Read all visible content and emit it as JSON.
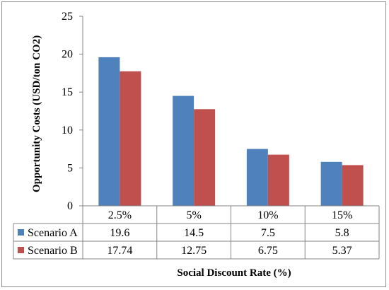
{
  "chart_data": {
    "type": "bar",
    "categories": [
      "2.5%",
      "5%",
      "10%",
      "15%"
    ],
    "series": [
      {
        "name": "Scenario A",
        "values": [
          19.6,
          14.5,
          7.5,
          5.8
        ],
        "labels": [
          "19.6",
          "14.5",
          "7.5",
          "5.8"
        ],
        "color": "#4f81bd"
      },
      {
        "name": "Scenario B",
        "values": [
          17.74,
          12.75,
          6.75,
          5.37
        ],
        "labels": [
          "17.74",
          "12.75",
          "6.75",
          "5.37"
        ],
        "color": "#c0504d"
      }
    ],
    "title": "",
    "xlabel": "Social Discount Rate (%)",
    "ylabel": "Opportunity Costs (USD/ton CO2)",
    "ylim": [
      0,
      25
    ],
    "yticks": [
      "0",
      "5",
      "10",
      "15",
      "20",
      "25"
    ],
    "grid": false,
    "legend": "data table rows below the plot"
  }
}
